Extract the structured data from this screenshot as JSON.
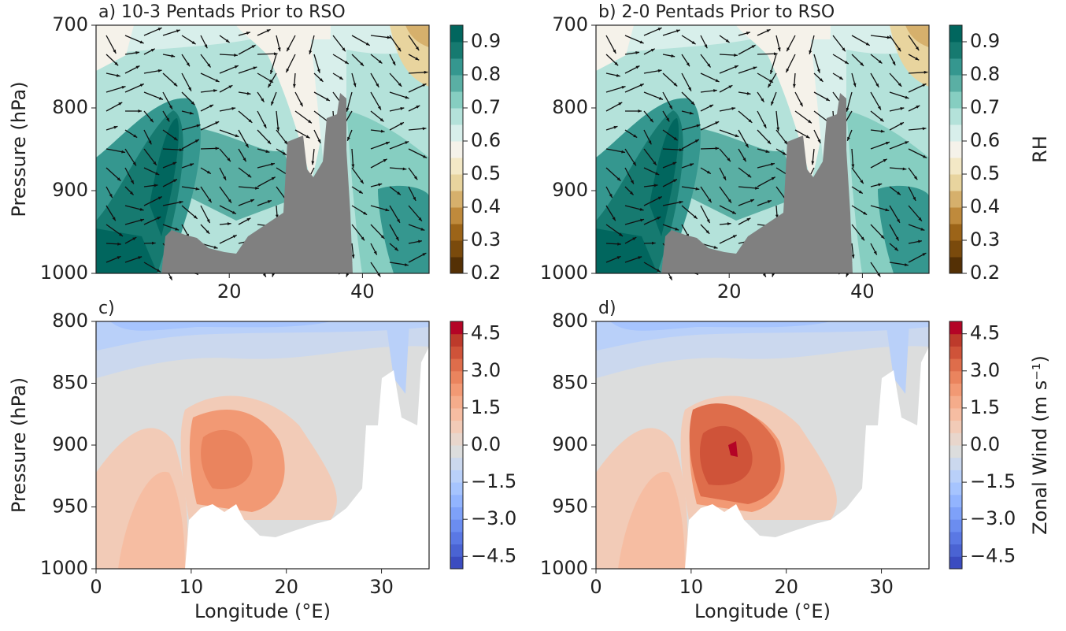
{
  "chart_data": [
    {
      "type": "contour",
      "title": "a) 10-3 Pentads Prior to RSO",
      "y_label": "Pressure (hPa)",
      "xlim": [
        0,
        50
      ],
      "xticks": [
        20,
        40
      ],
      "ylim": [
        1000,
        700
      ],
      "yticks": [
        700,
        800,
        900,
        1000
      ],
      "clim": [
        0.2,
        0.95
      ],
      "cticks": [
        0.2,
        0.3,
        0.4,
        0.5,
        0.6,
        0.7,
        0.8,
        0.9
      ],
      "colormap": [
        "#543005",
        "#7a4a0c",
        "#9c6418",
        "#bf8a3c",
        "#d6b06c",
        "#e8d49e",
        "#f3e8c6",
        "#f5f2ea",
        "#d8efeb",
        "#b4e2da",
        "#86cec1",
        "#5aafa4",
        "#35978f",
        "#167a70",
        "#01665e"
      ]
    },
    {
      "type": "contour",
      "title": "b) 2-0 Pentads Prior to RSO",
      "colorbar_label": "RH",
      "xlim": [
        0,
        50
      ],
      "xticks": [
        20,
        40
      ],
      "ylim": [
        1000,
        700
      ],
      "yticks": [
        700,
        800,
        900,
        1000
      ],
      "clim": [
        0.2,
        0.95
      ],
      "cticks": [
        0.2,
        0.3,
        0.4,
        0.5,
        0.6,
        0.7,
        0.8,
        0.9
      ],
      "colormap": [
        "#543005",
        "#7a4a0c",
        "#9c6418",
        "#bf8a3c",
        "#d6b06c",
        "#e8d49e",
        "#f3e8c6",
        "#f5f2ea",
        "#d8efeb",
        "#b4e2da",
        "#86cec1",
        "#5aafa4",
        "#35978f",
        "#167a70",
        "#01665e"
      ]
    },
    {
      "type": "contour",
      "title": "c)",
      "y_label": "Pressure (hPa)",
      "x_label": "Longitude (°E)",
      "xlim": [
        0,
        35
      ],
      "xticks": [
        0,
        10,
        20,
        30
      ],
      "ylim": [
        1000,
        800
      ],
      "yticks": [
        800,
        850,
        900,
        950,
        1000
      ],
      "clim": [
        -5,
        5
      ],
      "cticks": [
        {
          "value": -4.5,
          "label": "−4.5"
        },
        {
          "value": -3,
          "label": "−3.0"
        },
        {
          "value": -1.5,
          "label": "−1.5"
        },
        {
          "value": 0,
          "label": "0.0"
        },
        {
          "value": 1.5,
          "label": "1.5"
        },
        {
          "value": 3,
          "label": "3.0"
        },
        {
          "value": 4.5,
          "label": "4.5"
        }
      ],
      "colormap": [
        "#3b4cc0",
        "#4a63d3",
        "#5a78e4",
        "#6b8df0",
        "#7ea1f9",
        "#92b4fe",
        "#a6c4fe",
        "#b9d0f9",
        "#cbd8ee",
        "#dcdddd",
        "#e8d6cc",
        "#f2cbb7",
        "#f6bda2",
        "#f5ac8b",
        "#f29974",
        "#ea845e",
        "#de6d4b",
        "#cf5339",
        "#bd3a2b",
        "#b40426"
      ]
    },
    {
      "type": "contour",
      "title": "d)",
      "x_label": "Longitude (°E)",
      "colorbar_label": "Zonal Wind (m s⁻¹)",
      "xlim": [
        0,
        35
      ],
      "xticks": [
        0,
        10,
        20,
        30
      ],
      "ylim": [
        1000,
        800
      ],
      "yticks": [
        800,
        850,
        900,
        950,
        1000
      ],
      "clim": [
        -5,
        5
      ],
      "cticks": [
        {
          "value": -4.5,
          "label": "−4.5"
        },
        {
          "value": -3,
          "label": "−3.0"
        },
        {
          "value": -1.5,
          "label": "−1.5"
        },
        {
          "value": 0,
          "label": "0.0"
        },
        {
          "value": 1.5,
          "label": "1.5"
        },
        {
          "value": 3,
          "label": "3.0"
        },
        {
          "value": 4.5,
          "label": "4.5"
        }
      ],
      "colormap": [
        "#3b4cc0",
        "#4a63d3",
        "#5a78e4",
        "#6b8df0",
        "#7ea1f9",
        "#92b4fe",
        "#a6c4fe",
        "#b9d0f9",
        "#cbd8ee",
        "#dcdddd",
        "#e8d6cc",
        "#f2cbb7",
        "#f6bda2",
        "#f5ac8b",
        "#f29974",
        "#ea845e",
        "#de6d4b",
        "#cf5339",
        "#bd3a2b",
        "#b40426"
      ]
    }
  ]
}
